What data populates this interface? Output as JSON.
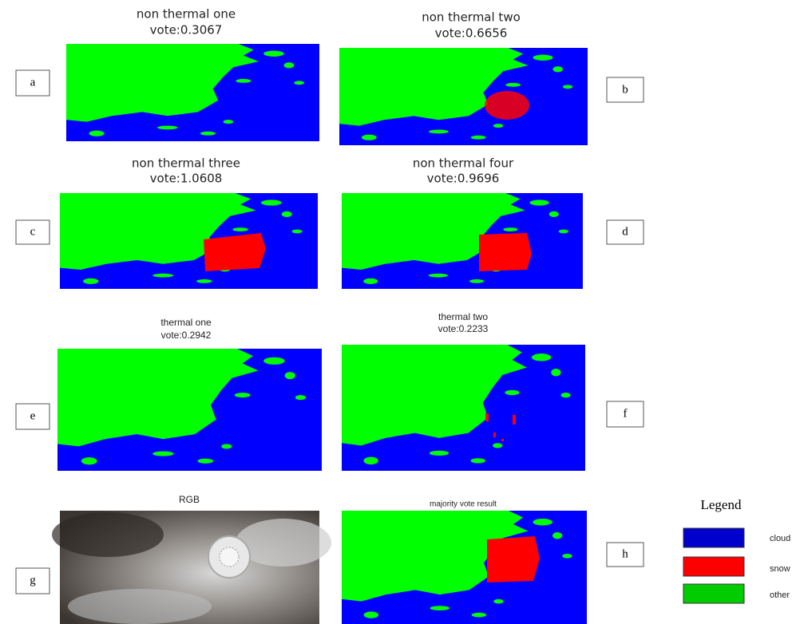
{
  "panels": [
    {
      "letter": "a",
      "title": "non thermal one",
      "vote": "vote:0.3067"
    },
    {
      "letter": "b",
      "title": "non thermal two",
      "vote": "vote:0.6656"
    },
    {
      "letter": "c",
      "title": "non thermal three",
      "vote": "vote:1.0608"
    },
    {
      "letter": "d",
      "title": "non thermal four",
      "vote": "vote:0.9696"
    },
    {
      "letter": "e",
      "title": "thermal one",
      "vote": "vote:0.2942"
    },
    {
      "letter": "f",
      "title": "thermal two",
      "vote": "vote:0.2233"
    },
    {
      "letter": "g",
      "title": "RGB"
    },
    {
      "letter": "h",
      "title": "majority vote result"
    }
  ],
  "legend": {
    "title": "Legend",
    "items": [
      "cloud",
      "snow",
      "other"
    ]
  }
}
